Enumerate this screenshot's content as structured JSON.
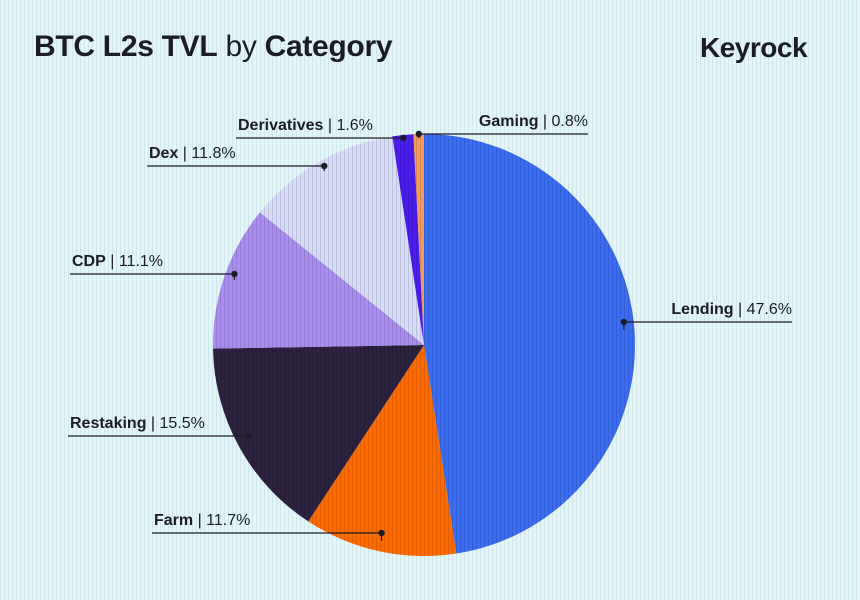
{
  "title": {
    "part1": "BTC L2s TVL",
    "part2": "by",
    "part3": "Category"
  },
  "brand": "Keyrock",
  "chart_data": {
    "type": "pie",
    "title": "BTC L2s TVL by Category",
    "unit": "%",
    "slices": [
      {
        "label": "Lending",
        "value": 47.6,
        "display": "47.6%",
        "color": "#3a6cf4"
      },
      {
        "label": "Farm",
        "value": 11.7,
        "display": "11.7%",
        "color": "#ff6a00"
      },
      {
        "label": "Restaking",
        "value": 15.5,
        "display": "15.5%",
        "color": "#2d2140"
      },
      {
        "label": "CDP",
        "value": 11.1,
        "display": "11.1%",
        "color": "#a98df0"
      },
      {
        "label": "Dex",
        "value": 11.8,
        "display": "11.8%",
        "color": "#d7dcfb"
      },
      {
        "label": "Derivatives",
        "value": 1.6,
        "display": "1.6%",
        "color": "#4a1cf0"
      },
      {
        "label": "Gaming",
        "value": 0.8,
        "display": "0.8%",
        "color": "#f39a5c"
      }
    ]
  }
}
